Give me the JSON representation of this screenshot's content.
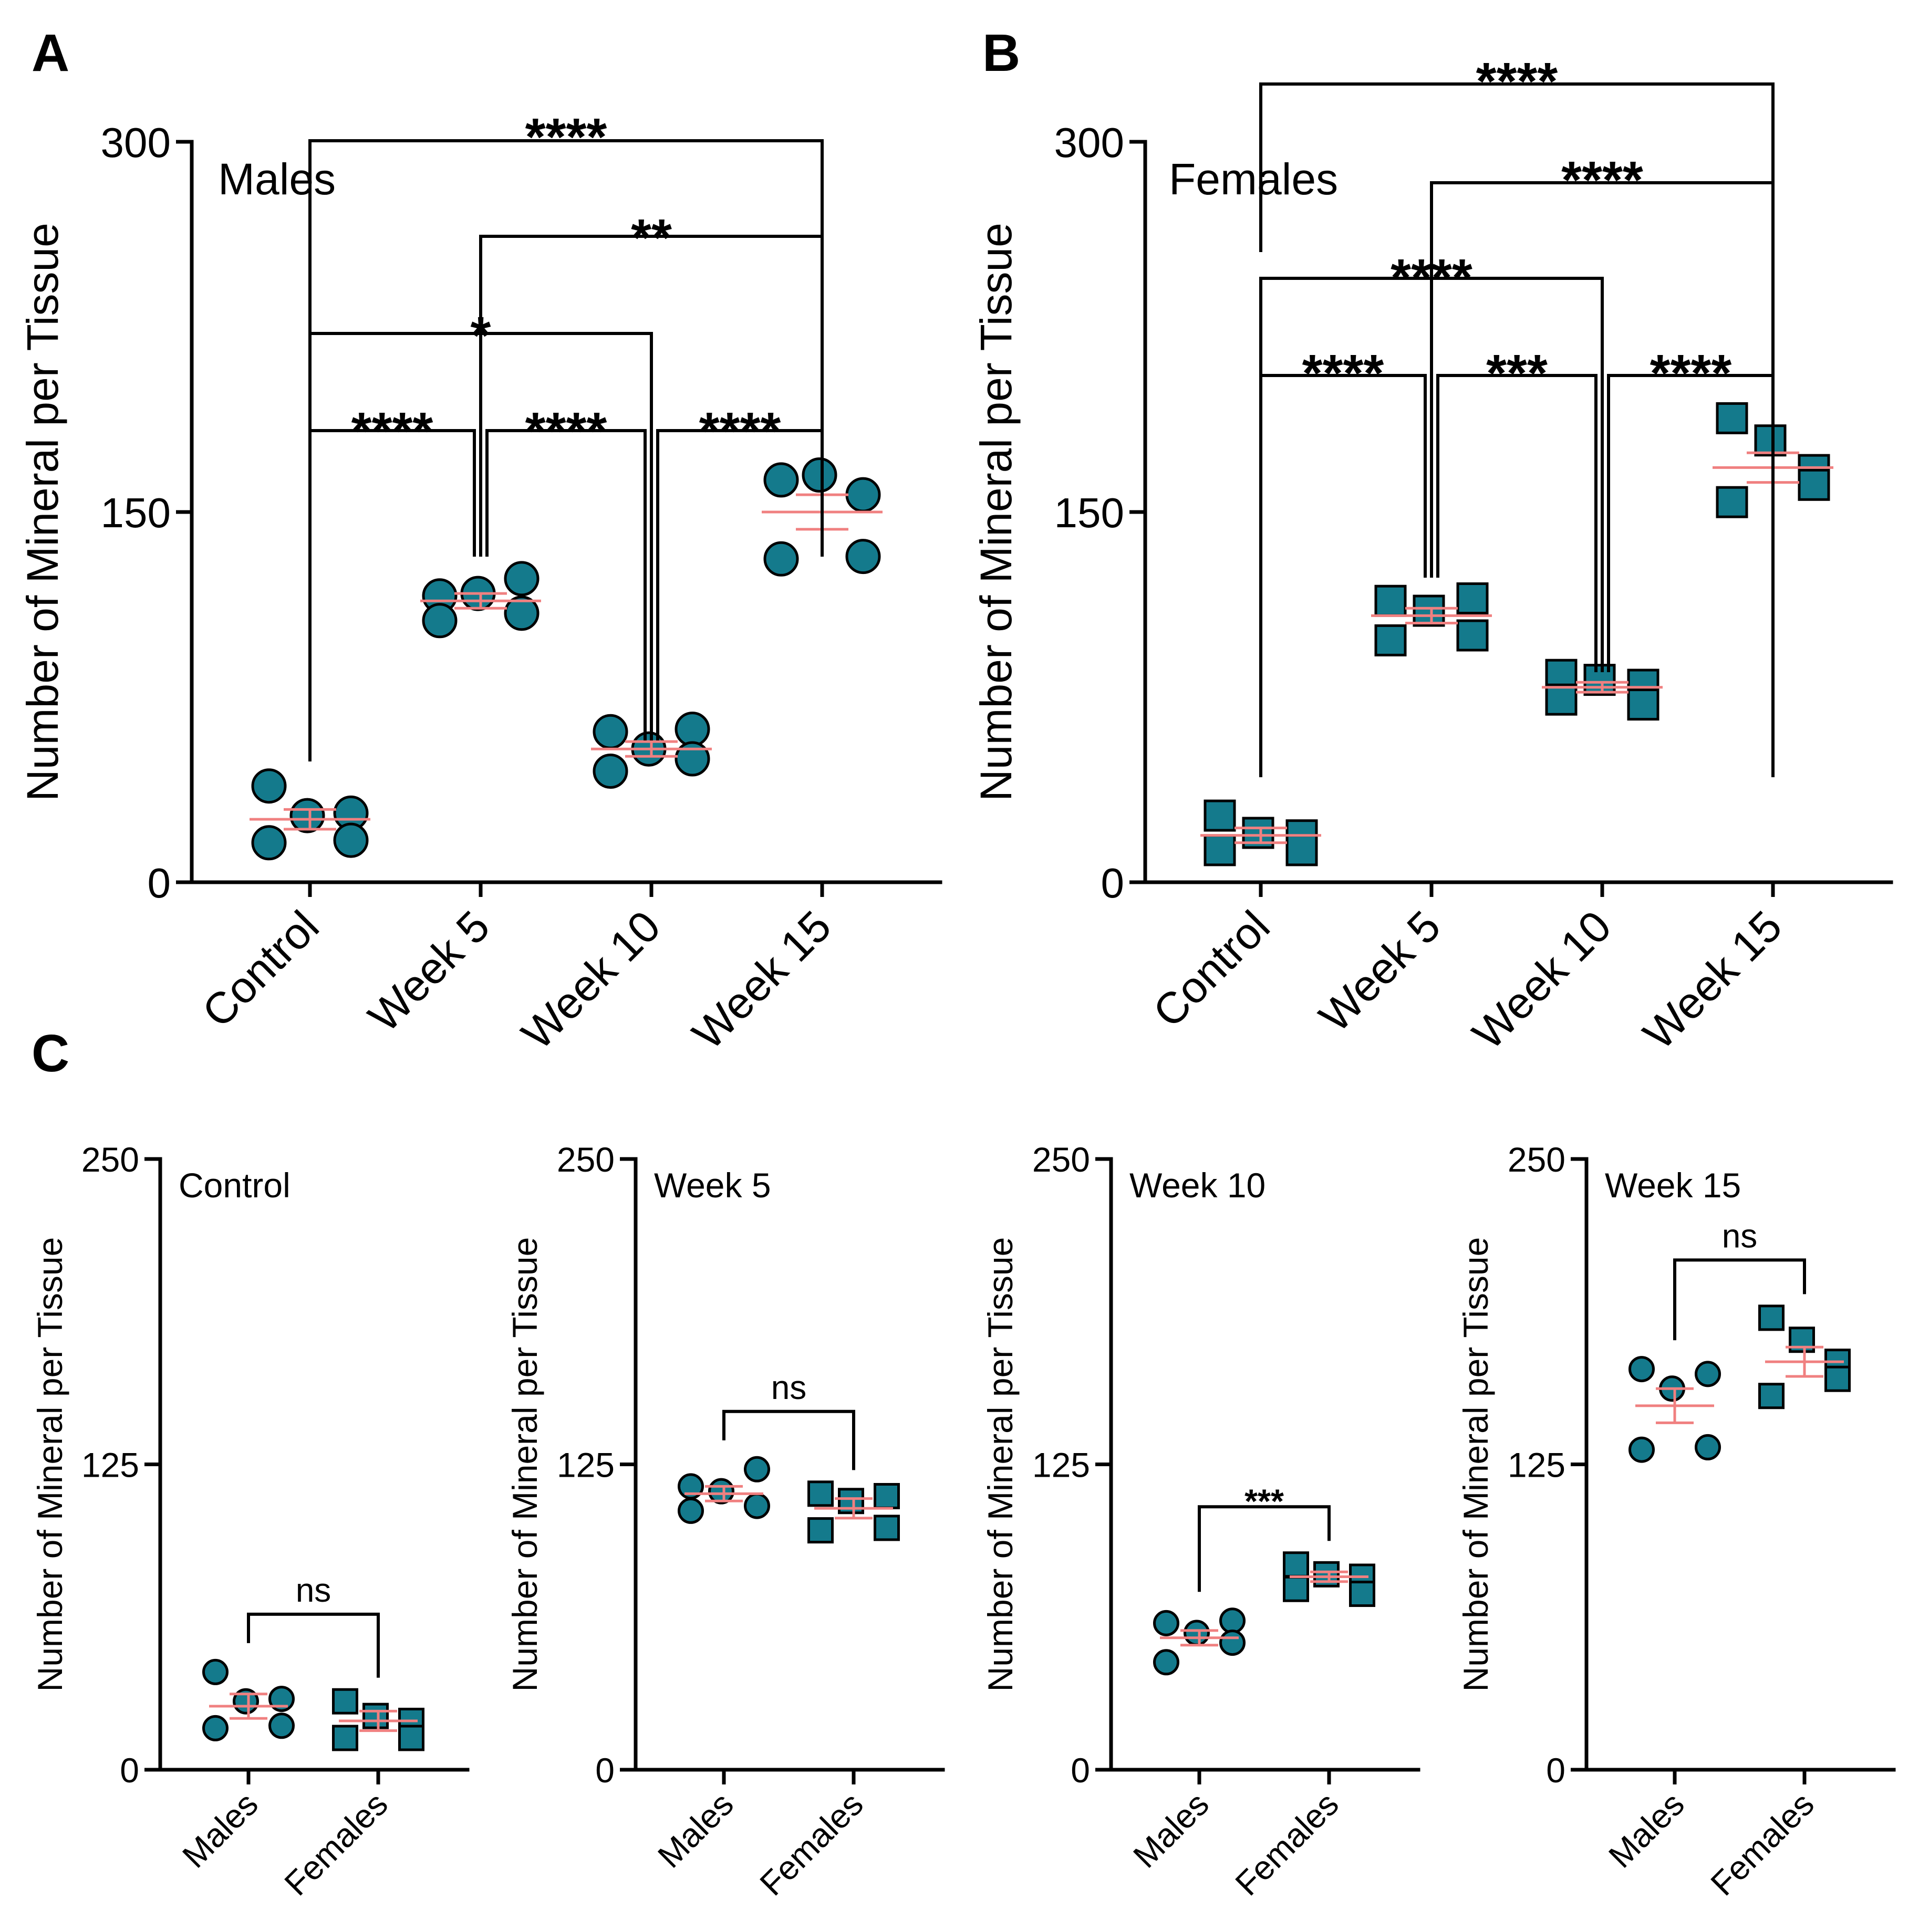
{
  "colors": {
    "marker": "#147A8C",
    "marker_edge": "#000000",
    "error_bar": "#F08080",
    "axis": "#000000"
  },
  "chart_data": [
    {
      "panel": "A",
      "type": "scatter",
      "panel_label": "A",
      "group_label": "Males",
      "ylabel": "Number of Mineral per Tissue",
      "ylim": [
        0,
        300
      ],
      "yticks": [
        "0",
        "150",
        "300"
      ],
      "categories": [
        "Control",
        "Week 5",
        "Week 10",
        "Week 15"
      ],
      "marker": "circle",
      "points": [
        [
          39,
          27,
          28,
          16,
          17
        ],
        [
          116,
          117,
          123,
          106,
          109
        ],
        [
          61,
          54,
          62,
          45,
          50
        ],
        [
          163,
          165,
          157,
          131,
          132
        ]
      ],
      "mean": [
        25.5,
        114,
        54,
        150
      ],
      "sem": [
        4,
        3,
        3,
        7
      ],
      "comparisons": [
        {
          "a": 0,
          "b": 1,
          "label": "****"
        },
        {
          "a": 1,
          "b": 2,
          "label": "****"
        },
        {
          "a": 2,
          "b": 3,
          "label": "****"
        },
        {
          "a": 0,
          "b": 2,
          "label": "*"
        },
        {
          "a": 1,
          "b": 3,
          "label": "**"
        },
        {
          "a": 0,
          "b": 3,
          "label": "****"
        }
      ]
    },
    {
      "panel": "B",
      "type": "scatter",
      "panel_label": "B",
      "group_label": "Females",
      "ylabel": "Number of Mineral per Tissue",
      "ylim": [
        0,
        300
      ],
      "yticks": [
        "0",
        "150",
        "300"
      ],
      "categories": [
        "Control",
        "Week 5",
        "Week 10",
        "Week 15"
      ],
      "marker": "square",
      "points": [
        [
          27,
          20,
          19,
          13,
          13
        ],
        [
          114,
          110,
          115,
          98,
          100
        ],
        [
          84,
          82,
          80,
          74,
          72
        ],
        [
          188,
          179,
          167,
          154,
          161
        ]
      ],
      "mean": [
        19,
        108,
        79,
        168
      ],
      "sem": [
        3,
        3,
        2,
        6
      ],
      "comparisons": [
        {
          "a": 0,
          "b": 1,
          "label": "****"
        },
        {
          "a": 1,
          "b": 2,
          "label": "***"
        },
        {
          "a": 2,
          "b": 3,
          "label": "****"
        },
        {
          "a": 0,
          "b": 2,
          "label": "****"
        },
        {
          "a": 1,
          "b": 3,
          "label": "****"
        },
        {
          "a": 0,
          "b": 3,
          "label": "****"
        }
      ]
    },
    {
      "panel": "C1",
      "type": "scatter",
      "panel_label": "C",
      "group_label": "Control",
      "ylabel": "Number of Mineral per Tissue",
      "ylim": [
        0,
        250
      ],
      "yticks": [
        "0",
        "125",
        "250"
      ],
      "categories": [
        "Males",
        "Females"
      ],
      "markers": [
        "circle",
        "square"
      ],
      "points": [
        [
          40,
          28,
          29,
          17,
          18
        ],
        [
          28,
          22,
          20,
          13,
          13
        ]
      ],
      "mean": [
        26,
        20
      ],
      "sem": [
        5,
        4
      ],
      "comparisons": [
        {
          "a": 0,
          "b": 1,
          "label": "ns"
        }
      ]
    },
    {
      "panel": "C2",
      "type": "scatter",
      "panel_label": "",
      "group_label": "Week 5",
      "ylabel": "Number of Mineral per Tissue",
      "ylim": [
        0,
        250
      ],
      "yticks": [
        "0",
        "125",
        "250"
      ],
      "categories": [
        "Males",
        "Females"
      ],
      "markers": [
        "circle",
        "square"
      ],
      "points": [
        [
          116,
          114,
          123,
          106,
          108
        ],
        [
          113,
          110,
          112,
          98,
          99
        ]
      ],
      "mean": [
        113,
        107
      ],
      "sem": [
        3,
        4
      ],
      "comparisons": [
        {
          "a": 0,
          "b": 1,
          "label": "ns"
        }
      ]
    },
    {
      "panel": "C3",
      "type": "scatter",
      "panel_label": "",
      "group_label": "Week 10",
      "ylabel": "Number of Mineral per Tissue",
      "ylim": [
        0,
        250
      ],
      "yticks": [
        "0",
        "125",
        "250"
      ],
      "categories": [
        "Males",
        "Females"
      ],
      "markers": [
        "circle",
        "square"
      ],
      "points": [
        [
          60,
          56,
          61,
          44,
          52
        ],
        [
          84,
          80,
          79,
          74,
          72
        ]
      ],
      "mean": [
        54,
        79
      ],
      "sem": [
        3,
        2
      ],
      "comparisons": [
        {
          "a": 0,
          "b": 1,
          "label": "***"
        }
      ]
    },
    {
      "panel": "C4",
      "type": "scatter",
      "panel_label": "",
      "group_label": "Week 15",
      "ylabel": "Number of Mineral per Tissue",
      "ylim": [
        0,
        250
      ],
      "yticks": [
        "0",
        "125",
        "250"
      ],
      "categories": [
        "Males",
        "Females"
      ],
      "markers": [
        "circle",
        "square"
      ],
      "points": [
        [
          164,
          156,
          162,
          131,
          132
        ],
        [
          185,
          176,
          167,
          153,
          160
        ]
      ],
      "mean": [
        149,
        167
      ],
      "sem": [
        7,
        6
      ],
      "comparisons": [
        {
          "a": 0,
          "b": 1,
          "label": "ns"
        }
      ]
    }
  ]
}
